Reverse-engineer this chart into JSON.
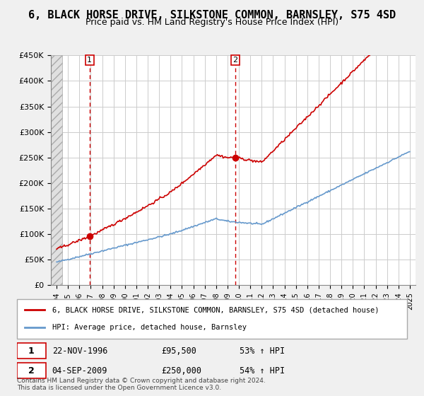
{
  "title": "6, BLACK HORSE DRIVE, SILKSTONE COMMON, BARNSLEY, S75 4SD",
  "subtitle": "Price paid vs. HM Land Registry's House Price Index (HPI)",
  "xlabel": "",
  "ylabel": "",
  "ylim": [
    0,
    450000
  ],
  "yticks": [
    0,
    50000,
    100000,
    150000,
    200000,
    250000,
    300000,
    350000,
    400000,
    450000
  ],
  "ytick_labels": [
    "£0",
    "£50K",
    "£100K",
    "£150K",
    "£200K",
    "£250K",
    "£300K",
    "£350K",
    "£400K",
    "£450K"
  ],
  "sale1_date": 1996.9,
  "sale1_price": 95500,
  "sale1_label": "1",
  "sale1_text": "22-NOV-1996    £95,500    53% ↑ HPI",
  "sale2_date": 2009.67,
  "sale2_price": 250000,
  "sale2_label": "2",
  "sale2_text": "04-SEP-2009    £250,000    54% ↑ HPI",
  "red_line_color": "#cc0000",
  "blue_line_color": "#6699cc",
  "hatch_color": "#cccccc",
  "bg_color": "#e8eef5",
  "plot_bg": "#ffffff",
  "legend_line1": "6, BLACK HORSE DRIVE, SILKSTONE COMMON, BARNSLEY, S75 4SD (detached house)",
  "legend_line2": "HPI: Average price, detached house, Barnsley",
  "footer": "Contains HM Land Registry data © Crown copyright and database right 2024.\nThis data is licensed under the Open Government Licence v3.0.",
  "title_fontsize": 11,
  "subtitle_fontsize": 9
}
